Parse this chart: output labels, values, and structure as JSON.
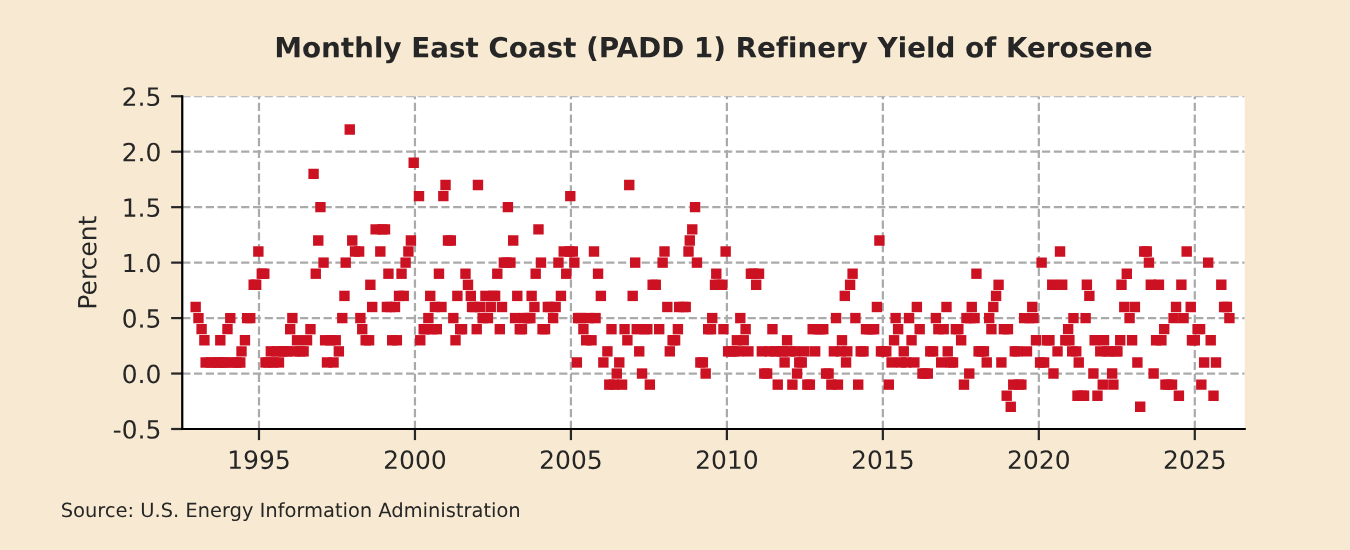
{
  "chart_data": {
    "type": "scatter",
    "title": "Monthly East Coast (PADD 1) Refinery Yield of Kerosene",
    "ylabel": "Percent",
    "annotations": [
      "Source: U.S. Energy Information Administration"
    ],
    "xlim": [
      1992.54,
      2026.6
    ],
    "xticks": [
      1995,
      2000,
      2005,
      2010,
      2015,
      2020,
      2025
    ],
    "ylim": [
      -0.5,
      2.5
    ],
    "yticks": [
      {
        "value": -0.5,
        "label": "-0.5"
      },
      {
        "value": 0,
        "label": "0.0"
      },
      {
        "value": 0.5,
        "label": "0.5"
      },
      {
        "value": 1,
        "label": "1.0"
      },
      {
        "value": 1.5,
        "label": "1.5"
      },
      {
        "value": 2,
        "label": "2.0"
      },
      {
        "value": 2.5,
        "label": "2.5"
      }
    ],
    "grid": true,
    "marker": "square",
    "legend": false,
    "series": [
      {
        "color": "#cc1122",
        "x": [
          1992.97,
          1993.06,
          1993.16,
          1993.25,
          1993.29,
          1993.46,
          1993.63,
          1993.72,
          1993.76,
          1993.85,
          1993.93,
          1993.99,
          1994.08,
          1994.19,
          1994.29,
          1994.4,
          1994.44,
          1994.55,
          1994.62,
          1994.72,
          1994.83,
          1994.91,
          1994.98,
          1995.09,
          1995.17,
          1995.21,
          1995.3,
          1995.38,
          1995.47,
          1995.56,
          1995.64,
          1995.73,
          1995.81,
          1995.9,
          1996.0,
          1996.07,
          1996.15,
          1996.22,
          1996.32,
          1996.43,
          1996.54,
          1996.65,
          1996.75,
          1996.82,
          1996.9,
          1996.97,
          1997.07,
          1997.12,
          1997.18,
          1997.29,
          1997.39,
          1997.46,
          1997.56,
          1997.67,
          1997.74,
          1997.78,
          1997.91,
          1997.99,
          1998.08,
          1998.21,
          1998.25,
          1998.31,
          1998.42,
          1998.53,
          1998.57,
          1998.63,
          1998.74,
          1998.89,
          1998.95,
          1999.04,
          1999.1,
          1999.15,
          1999.21,
          1999.27,
          1999.36,
          1999.42,
          1999.49,
          1999.57,
          1999.64,
          1999.7,
          1999.79,
          1999.87,
          1999.96,
          2000.13,
          2000.17,
          2000.28,
          2000.34,
          2000.43,
          2000.49,
          2000.55,
          2000.64,
          2000.7,
          2000.77,
          2000.85,
          2000.91,
          2000.98,
          2001.06,
          2001.15,
          2001.23,
          2001.3,
          2001.36,
          2001.45,
          2001.51,
          2001.62,
          2001.7,
          2001.79,
          2001.83,
          2001.91,
          2001.98,
          2002.02,
          2002.09,
          2002.17,
          2002.26,
          2002.34,
          2002.43,
          2002.51,
          2002.57,
          2002.64,
          2002.72,
          2002.79,
          2002.85,
          2002.94,
          2002.98,
          2003.06,
          2003.15,
          2003.21,
          2003.28,
          2003.36,
          2003.43,
          2003.51,
          2003.62,
          2003.7,
          2003.74,
          2003.83,
          2003.87,
          2003.96,
          2004.04,
          2004.09,
          2004.17,
          2004.26,
          2004.34,
          2004.43,
          2004.51,
          2004.6,
          2004.68,
          2004.77,
          2004.85,
          2004.96,
          2004.98,
          2005.06,
          2005.11,
          2005.19,
          2005.23,
          2005.32,
          2005.4,
          2005.49,
          2005.57,
          2005.66,
          2005.74,
          2005.79,
          2005.87,
          2005.96,
          2006.04,
          2006.17,
          2006.23,
          2006.3,
          2006.38,
          2006.47,
          2006.55,
          2006.64,
          2006.72,
          2006.81,
          2006.87,
          2006.98,
          2007.06,
          2007.11,
          2007.19,
          2007.28,
          2007.36,
          2007.45,
          2007.53,
          2007.62,
          2007.72,
          2007.83,
          2007.94,
          2008.0,
          2008.09,
          2008.17,
          2008.26,
          2008.34,
          2008.43,
          2008.47,
          2008.6,
          2008.68,
          2008.77,
          2008.81,
          2008.89,
          2008.98,
          2009.04,
          2009.15,
          2009.23,
          2009.32,
          2009.4,
          2009.49,
          2009.53,
          2009.62,
          2009.66,
          2009.74,
          2009.85,
          2009.89,
          2009.96,
          2010.04,
          2010.13,
          2010.21,
          2010.32,
          2010.39,
          2010.43,
          2010.54,
          2010.6,
          2010.69,
          2010.77,
          2010.86,
          2010.94,
          2011.03,
          2011.12,
          2011.2,
          2011.29,
          2011.37,
          2011.46,
          2011.55,
          2011.63,
          2011.72,
          2011.8,
          2011.85,
          2011.93,
          2012.02,
          2012.1,
          2012.19,
          2012.25,
          2012.32,
          2012.4,
          2012.49,
          2012.58,
          2012.66,
          2012.75,
          2012.83,
          2012.92,
          2013.0,
          2013.09,
          2013.18,
          2013.26,
          2013.35,
          2013.43,
          2013.5,
          2013.56,
          2013.65,
          2013.69,
          2013.78,
          2013.82,
          2013.86,
          2013.95,
          2014.03,
          2014.12,
          2014.21,
          2014.29,
          2014.38,
          2014.46,
          2014.55,
          2014.64,
          2014.72,
          2014.81,
          2014.89,
          2014.94,
          2015.02,
          2015.11,
          2015.19,
          2015.28,
          2015.36,
          2015.41,
          2015.49,
          2015.58,
          2015.67,
          2015.75,
          2015.84,
          2015.92,
          2016.01,
          2016.09,
          2016.18,
          2016.27,
          2016.35,
          2016.44,
          2016.52,
          2016.61,
          2016.7,
          2016.78,
          2016.87,
          2016.95,
          2017.04,
          2017.08,
          2017.17,
          2017.25,
          2017.34,
          2017.42,
          2017.51,
          2017.6,
          2017.68,
          2017.77,
          2017.81,
          2017.85,
          2017.94,
          2018.0,
          2018.07,
          2018.15,
          2018.24,
          2018.33,
          2018.41,
          2018.48,
          2018.54,
          2018.63,
          2018.71,
          2018.8,
          2018.88,
          2018.97,
          2019.01,
          2019.1,
          2019.18,
          2019.23,
          2019.32,
          2019.36,
          2019.44,
          2019.53,
          2019.62,
          2019.7,
          2019.79,
          2019.83,
          2019.91,
          2020.04,
          2020.09,
          2020.17,
          2020.26,
          2020.34,
          2020.43,
          2020.47,
          2020.6,
          2020.68,
          2020.75,
          2020.85,
          2020.94,
          2020.98,
          2021.07,
          2021.11,
          2021.2,
          2021.24,
          2021.28,
          2021.37,
          2021.45,
          2021.5,
          2021.54,
          2021.62,
          2021.75,
          2021.79,
          2021.88,
          2021.97,
          2022.05,
          2022.09,
          2022.18,
          2022.26,
          2022.35,
          2022.39,
          2022.48,
          2022.52,
          2022.61,
          2022.65,
          2022.74,
          2022.82,
          2022.91,
          2022.99,
          2023.08,
          2023.16,
          2023.25,
          2023.38,
          2023.46,
          2023.53,
          2023.59,
          2023.68,
          2023.76,
          2023.85,
          2023.93,
          2024.02,
          2024.06,
          2024.15,
          2024.27,
          2024.32,
          2024.4,
          2024.49,
          2024.57,
          2024.64,
          2024.74,
          2024.87,
          2024.91,
          2025.0,
          2025.09,
          2025.17,
          2025.21,
          2025.3,
          2025.43,
          2025.51,
          2025.6,
          2025.68,
          2025.85,
          2025.94,
          2026.03,
          2026.11
        ],
        "values": [
          0.6,
          0.5,
          0.4,
          0.3,
          0.1,
          0.1,
          0.1,
          0.1,
          0.3,
          0.1,
          0.1,
          0.4,
          0.5,
          0.1,
          0.1,
          0.1,
          0.2,
          0.3,
          0.5,
          0.5,
          0.8,
          0.8,
          1.1,
          0.9,
          0.9,
          0.1,
          0.1,
          0.2,
          0.1,
          0.2,
          0.1,
          0.2,
          0.2,
          0.2,
          0.4,
          0.5,
          0.2,
          0.3,
          0.2,
          0.2,
          0.3,
          0.4,
          1.8,
          0.9,
          1.2,
          1.5,
          1.0,
          0.3,
          0.1,
          0.3,
          0.1,
          0.3,
          0.2,
          0.5,
          0.7,
          1.0,
          2.2,
          1.2,
          1.1,
          1.1,
          0.5,
          0.4,
          0.3,
          0.3,
          0.8,
          0.6,
          1.3,
          1.1,
          1.3,
          1.3,
          0.6,
          0.9,
          0.6,
          0.3,
          0.6,
          0.3,
          0.7,
          0.9,
          0.7,
          1.0,
          1.1,
          1.2,
          1.9,
          1.6,
          0.3,
          0.4,
          0.4,
          0.5,
          0.7,
          0.4,
          0.6,
          0.4,
          0.9,
          0.6,
          1.6,
          1.7,
          1.2,
          1.2,
          0.5,
          0.3,
          0.7,
          0.4,
          0.4,
          0.9,
          0.8,
          0.7,
          0.6,
          0.6,
          0.4,
          1.7,
          0.6,
          0.5,
          0.7,
          0.5,
          0.6,
          0.7,
          0.7,
          0.9,
          0.4,
          0.6,
          1.0,
          1.0,
          1.5,
          1.0,
          1.2,
          0.5,
          0.7,
          0.4,
          0.4,
          0.5,
          0.5,
          0.5,
          0.7,
          0.6,
          0.9,
          1.3,
          1.0,
          0.4,
          0.4,
          0.6,
          0.6,
          0.5,
          0.6,
          1.0,
          0.7,
          1.1,
          0.9,
          1.1,
          1.6,
          1.1,
          1.0,
          0.1,
          0.5,
          0.5,
          0.4,
          0.3,
          0.5,
          0.3,
          1.1,
          0.5,
          0.9,
          0.7,
          0.1,
          0.2,
          -0.1,
          0.4,
          -0.1,
          0.0,
          0.1,
          -0.1,
          0.4,
          0.3,
          1.7,
          0.7,
          1.0,
          0.4,
          0.2,
          0.0,
          0.4,
          0.4,
          -0.1,
          0.8,
          0.8,
          0.4,
          1.0,
          1.1,
          0.6,
          0.2,
          0.3,
          0.3,
          0.4,
          0.6,
          0.6,
          0.6,
          1.1,
          1.2,
          1.3,
          1.5,
          1.0,
          0.1,
          0.1,
          0.0,
          0.4,
          0.4,
          0.5,
          0.8,
          0.9,
          0.8,
          0.8,
          0.4,
          1.1,
          0.2,
          0.2,
          0.2,
          0.3,
          0.2,
          0.5,
          0.3,
          0.4,
          0.2,
          0.9,
          0.9,
          0.8,
          0.9,
          0.2,
          0.0,
          0.0,
          0.2,
          0.4,
          0.2,
          -0.1,
          0.2,
          0.2,
          0.1,
          0.3,
          0.2,
          -0.1,
          0.2,
          0.0,
          0.1,
          0.1,
          0.2,
          -0.1,
          -0.1,
          0.4,
          0.2,
          0.4,
          0.4,
          0.4,
          0.0,
          0.0,
          -0.1,
          0.2,
          0.5,
          -0.1,
          0.2,
          0.3,
          0.7,
          0.1,
          0.2,
          0.8,
          0.9,
          0.5,
          -0.1,
          0.2,
          0.2,
          0.4,
          0.4,
          0.4,
          0.4,
          0.6,
          1.2,
          0.2,
          0.2,
          0.2,
          -0.1,
          0.1,
          0.3,
          0.5,
          0.4,
          0.1,
          0.2,
          0.1,
          0.5,
          0.3,
          0.1,
          0.6,
          0.4,
          0.0,
          0.0,
          0.0,
          0.2,
          0.2,
          0.5,
          0.4,
          0.1,
          0.4,
          0.6,
          0.2,
          0.1,
          0.1,
          0.4,
          0.4,
          0.3,
          -0.1,
          0.5,
          0.0,
          0.5,
          0.6,
          0.5,
          0.9,
          0.2,
          0.2,
          0.2,
          0.1,
          0.5,
          0.4,
          0.6,
          0.7,
          0.8,
          0.1,
          0.4,
          -0.2,
          0.4,
          -0.3,
          -0.1,
          0.2,
          0.2,
          -0.1,
          -0.1,
          0.5,
          0.2,
          0.5,
          0.6,
          0.5,
          0.3,
          0.1,
          1.0,
          0.1,
          0.3,
          0.3,
          0.8,
          0.0,
          0.2,
          1.1,
          0.8,
          0.3,
          0.4,
          0.3,
          0.2,
          0.5,
          0.2,
          -0.2,
          0.1,
          -0.2,
          -0.2,
          0.5,
          0.8,
          0.7,
          0.0,
          0.3,
          -0.2,
          0.2,
          -0.1,
          0.3,
          0.2,
          0.2,
          0.0,
          -0.1,
          0.2,
          0.2,
          0.3,
          0.8,
          0.6,
          0.9,
          0.5,
          0.3,
          0.6,
          0.1,
          -0.3,
          1.1,
          1.1,
          1.0,
          0.8,
          0.0,
          0.3,
          0.8,
          0.3,
          0.4,
          -0.1,
          -0.1,
          -0.1,
          0.5,
          0.6,
          -0.2,
          0.8,
          0.5,
          1.1,
          0.6,
          0.3,
          0.3,
          0.4,
          0.4,
          -0.1,
          0.1,
          1.0,
          0.3,
          -0.2,
          0.1,
          0.8,
          0.6,
          0.6,
          0.5
        ]
      }
    ]
  }
}
